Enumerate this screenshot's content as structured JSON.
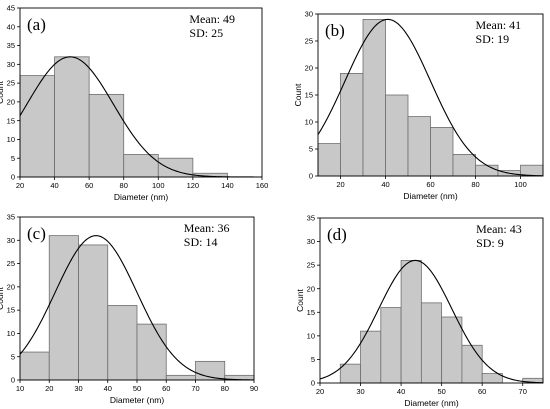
{
  "chart_data": [
    {
      "type": "bar",
      "panel_label": "(a)",
      "stats": {
        "mean": "Mean: 49",
        "sd": "SD: 25"
      },
      "xlabel": "Diameter (nm)",
      "ylabel": "Count",
      "xlim": [
        20,
        160
      ],
      "ylim": [
        0,
        45
      ],
      "xticks": [
        20,
        40,
        60,
        80,
        100,
        120,
        140,
        160
      ],
      "yticks": [
        0,
        5,
        10,
        15,
        20,
        25,
        30,
        35,
        40,
        45
      ],
      "bins": [
        [
          20,
          40
        ],
        [
          40,
          60
        ],
        [
          60,
          80
        ],
        [
          80,
          100
        ],
        [
          100,
          120
        ],
        [
          120,
          140
        ]
      ],
      "values": [
        27,
        32,
        22,
        6,
        5,
        1
      ],
      "fit": {
        "mean": 49,
        "sd": 25,
        "peak": 32
      },
      "grid": false
    },
    {
      "type": "bar",
      "panel_label": "(b)",
      "stats": {
        "mean": "Mean: 41",
        "sd": "SD: 19"
      },
      "xlabel": "Diameter (nm)",
      "ylabel": "Count",
      "xlim": [
        10,
        110
      ],
      "ylim": [
        0,
        30
      ],
      "xticks": [
        20,
        40,
        60,
        80,
        100
      ],
      "yticks": [
        0,
        5,
        10,
        15,
        20,
        25,
        30
      ],
      "bins": [
        [
          10,
          20
        ],
        [
          20,
          30
        ],
        [
          30,
          40
        ],
        [
          40,
          50
        ],
        [
          50,
          60
        ],
        [
          60,
          70
        ],
        [
          70,
          80
        ],
        [
          80,
          90
        ],
        [
          90,
          100
        ],
        [
          100,
          110
        ]
      ],
      "values": [
        6,
        19,
        29,
        15,
        11,
        9,
        4,
        2,
        1,
        2
      ],
      "fit": {
        "mean": 41,
        "sd": 19,
        "peak": 29
      },
      "grid": false
    },
    {
      "type": "bar",
      "panel_label": "(c)",
      "stats": {
        "mean": "Mean: 36",
        "sd": "SD: 14"
      },
      "xlabel": "Diameter (nm)",
      "ylabel": "Count",
      "xlim": [
        10,
        90
      ],
      "ylim": [
        0,
        35
      ],
      "xticks": [
        10,
        20,
        30,
        40,
        50,
        60,
        70,
        80,
        90
      ],
      "yticks": [
        0,
        5,
        10,
        15,
        20,
        25,
        30,
        35
      ],
      "bins": [
        [
          10,
          20
        ],
        [
          20,
          30
        ],
        [
          30,
          40
        ],
        [
          40,
          50
        ],
        [
          50,
          60
        ],
        [
          60,
          70
        ],
        [
          70,
          80
        ],
        [
          80,
          90
        ]
      ],
      "values": [
        6,
        31,
        29,
        16,
        12,
        1,
        4,
        1
      ],
      "fit": {
        "mean": 36,
        "sd": 14,
        "peak": 31
      },
      "grid": false
    },
    {
      "type": "bar",
      "panel_label": "(d)",
      "stats": {
        "mean": "Mean: 43",
        "sd": "SD: 9"
      },
      "xlabel": "Diameter (nm)",
      "ylabel": "Count",
      "xlim": [
        20,
        75
      ],
      "ylim": [
        0,
        35
      ],
      "xticks": [
        20,
        30,
        40,
        50,
        60,
        70
      ],
      "yticks": [
        0,
        5,
        10,
        15,
        20,
        25,
        30,
        35
      ],
      "bins": [
        [
          25,
          30
        ],
        [
          30,
          35
        ],
        [
          35,
          40
        ],
        [
          40,
          45
        ],
        [
          45,
          50
        ],
        [
          50,
          55
        ],
        [
          55,
          60
        ],
        [
          60,
          65
        ],
        [
          70,
          75
        ]
      ],
      "values": [
        4,
        11,
        16,
        26,
        17,
        14,
        8,
        2,
        1
      ],
      "fit": {
        "mean": 43.5,
        "sd": 9,
        "peak": 26
      },
      "grid": false
    }
  ],
  "colors": {
    "bar_fill": "#c8c8c8",
    "bar_stroke": "#6e6e6e",
    "fit_line": "#000000",
    "axis": "#000000"
  }
}
